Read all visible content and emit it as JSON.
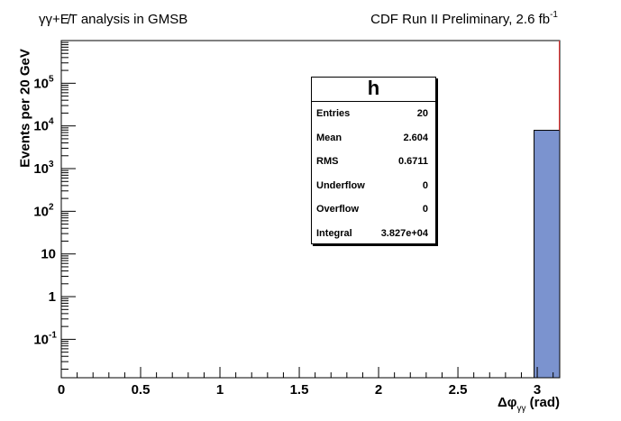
{
  "header": {
    "title_left": "γγ+E̸T analysis in GMSB",
    "title_right": "CDF Run II Preliminary, 2.6 fb",
    "title_right_sup": "-1"
  },
  "stats": {
    "name": "h",
    "rows": [
      {
        "label": "Entries",
        "value": "20"
      },
      {
        "label": "Mean",
        "value": "2.604"
      },
      {
        "label": "RMS",
        "value": "0.6711"
      },
      {
        "label": "Underflow",
        "value": "0"
      },
      {
        "label": "Overflow",
        "value": "0"
      },
      {
        "label": "Integral",
        "value": "3.827e+04"
      }
    ]
  },
  "chart_data": {
    "type": "bar",
    "title": "γγ+E̸T analysis in GMSB",
    "xlabel": "Δφγγ (rad)",
    "xlabel_main": "Δφ",
    "xlabel_sub": "γγ",
    "xlabel_unit": "(rad)",
    "ylabel": "Events per 20 GeV",
    "xlim": [
      0,
      3.1416
    ],
    "ylim_log": [
      -1.9,
      6
    ],
    "log_y": true,
    "grid": false,
    "x_ticks": [
      {
        "v": 0,
        "label": "0"
      },
      {
        "v": 0.5,
        "label": "0.5"
      },
      {
        "v": 1,
        "label": "1"
      },
      {
        "v": 1.5,
        "label": "1.5"
      },
      {
        "v": 2,
        "label": "2"
      },
      {
        "v": 2.5,
        "label": "2.5"
      },
      {
        "v": 3,
        "label": "3"
      }
    ],
    "y_ticks": [
      {
        "exp": -1,
        "base": "10",
        "sup": "-1"
      },
      {
        "exp": 0,
        "base": "1",
        "sup": ""
      },
      {
        "exp": 1,
        "base": "10",
        "sup": ""
      },
      {
        "exp": 2,
        "base": "10",
        "sup": "2"
      },
      {
        "exp": 3,
        "base": "10",
        "sup": "3"
      },
      {
        "exp": 4,
        "base": "10",
        "sup": "4"
      },
      {
        "exp": 5,
        "base": "10",
        "sup": "5"
      }
    ],
    "bins": [
      {
        "x0": 2.98,
        "x1": 3.1416,
        "value": 7900,
        "color": "#7b93cf"
      }
    ],
    "edge_line_color": "#e03030",
    "legend": "none"
  }
}
